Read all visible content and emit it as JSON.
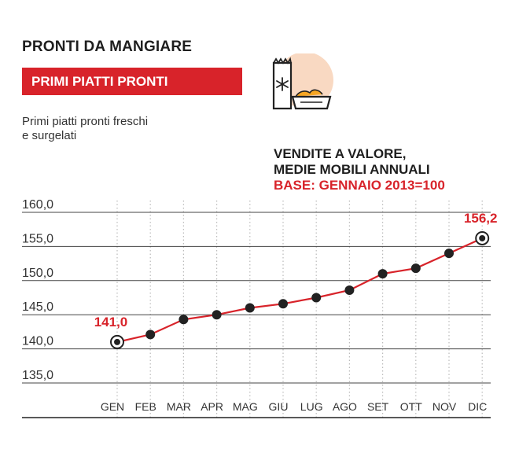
{
  "header": {
    "title": "PRONTI DA MANGIARE",
    "section": "PRIMI PIATTI PRONTI",
    "description_line1": "Primi piatti pronti freschi",
    "description_line2": "e surgelati"
  },
  "icon": {
    "name": "frozen-food-bag-icon",
    "background": "#f9d9c2"
  },
  "chart_heading": {
    "line1": "VENDITE A VALORE,",
    "line2": "MEDIE MOBILI ANNUALI",
    "line3": "BASE: GENNAIO 2013=100"
  },
  "colors": {
    "accent": "#d8232a",
    "marker": "#222222",
    "grid": "#bbbbbb"
  },
  "chart_data": {
    "type": "line",
    "categories": [
      "GEN",
      "FEB",
      "MAR",
      "APR",
      "MAG",
      "GIU",
      "LUG",
      "AGO",
      "SET",
      "OTT",
      "NOV",
      "DIC"
    ],
    "series": [
      {
        "values": [
          141.0,
          142.1,
          144.3,
          145.0,
          146.0,
          146.6,
          147.5,
          148.6,
          151.0,
          151.8,
          154.0,
          156.2
        ]
      }
    ],
    "yticks": [
      "160,0",
      "155,0",
      "150,0",
      "145,0",
      "140,0",
      "135,0"
    ],
    "ylim": [
      135,
      160
    ],
    "annotations": [
      {
        "category": "GEN",
        "label": "141,0"
      },
      {
        "category": "DIC",
        "label": "156,2"
      }
    ],
    "grid": true,
    "xlabel": "",
    "ylabel": ""
  }
}
